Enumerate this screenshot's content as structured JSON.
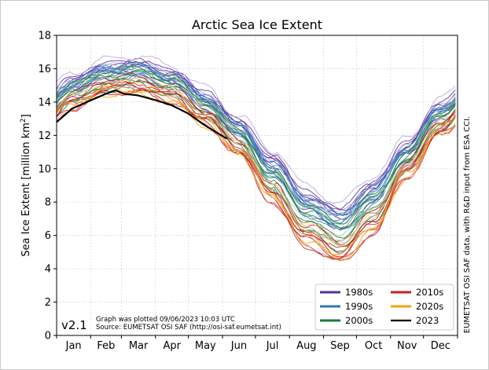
{
  "chart_data": {
    "type": "line",
    "title": "Arctic Sea Ice Extent",
    "ylabel": "Sea Ice Extent [million km",
    "ylabel_sup": "2",
    "ylabel_close": "]",
    "xlabel": "",
    "ylim": [
      0,
      18
    ],
    "yticks": [
      0,
      2,
      4,
      6,
      8,
      10,
      12,
      14,
      16,
      18
    ],
    "x_categories": [
      "Jan",
      "Feb",
      "Mar",
      "Apr",
      "May",
      "Jun",
      "Jul",
      "Aug",
      "Sep",
      "Oct",
      "Nov",
      "Dec"
    ],
    "grid": true,
    "legend_position": "bottom-right",
    "series": [
      {
        "name": "1980s",
        "color": "#5b2c9e",
        "count": 9,
        "monthly_mean": [
          15.3,
          16.1,
          16.3,
          15.7,
          14.4,
          12.7,
          10.6,
          8.3,
          7.3,
          8.9,
          11.4,
          13.7
        ],
        "spread": 0.45
      },
      {
        "name": "1990s",
        "color": "#2f78b4",
        "count": 10,
        "monthly_mean": [
          14.9,
          15.8,
          15.9,
          15.3,
          14.0,
          12.3,
          10.0,
          7.8,
          6.8,
          8.4,
          11.0,
          13.3
        ],
        "spread": 0.45
      },
      {
        "name": "2000s",
        "color": "#1f7a3a",
        "count": 10,
        "monthly_mean": [
          14.5,
          15.3,
          15.5,
          14.9,
          13.6,
          11.8,
          9.2,
          7.0,
          6.0,
          7.6,
          10.4,
          12.9
        ],
        "spread": 0.55
      },
      {
        "name": "2010s",
        "color": "#c0221f",
        "count": 10,
        "monthly_mean": [
          14.0,
          14.9,
          15.0,
          14.4,
          13.1,
          11.2,
          8.4,
          5.9,
          4.9,
          6.6,
          9.9,
          12.4
        ],
        "spread": 0.5
      },
      {
        "name": "2020s",
        "color": "#f5a300",
        "count": 3,
        "monthly_mean": [
          14.0,
          14.8,
          14.8,
          14.3,
          12.9,
          11.2,
          8.6,
          6.2,
          5.0,
          6.7,
          9.8,
          12.5
        ],
        "spread": 0.3
      },
      {
        "name": "2023",
        "color": "#000000",
        "count": 1,
        "points": [
          {
            "day": 1,
            "value": 12.8
          },
          {
            "day": 15,
            "value": 13.6
          },
          {
            "day": 32,
            "value": 14.1
          },
          {
            "day": 46,
            "value": 14.5
          },
          {
            "day": 55,
            "value": 14.7
          },
          {
            "day": 62,
            "value": 14.5
          },
          {
            "day": 75,
            "value": 14.4
          },
          {
            "day": 92,
            "value": 14.1
          },
          {
            "day": 106,
            "value": 13.8
          },
          {
            "day": 121,
            "value": 13.3
          },
          {
            "day": 136,
            "value": 12.6
          },
          {
            "day": 151,
            "value": 12.0
          },
          {
            "day": 156,
            "value": 11.8
          }
        ]
      }
    ],
    "version_label": "v2.1",
    "plot_note_line1": "Graph was plotted 09/06/2023 10:03 UTC",
    "plot_note_line2": "Source: EUMETSAT OSI SAF (http://osi-saf.eumetsat.int)",
    "side_credit": "EUMETSAT OSI SAF data, with R&D input from ESA CCI."
  }
}
